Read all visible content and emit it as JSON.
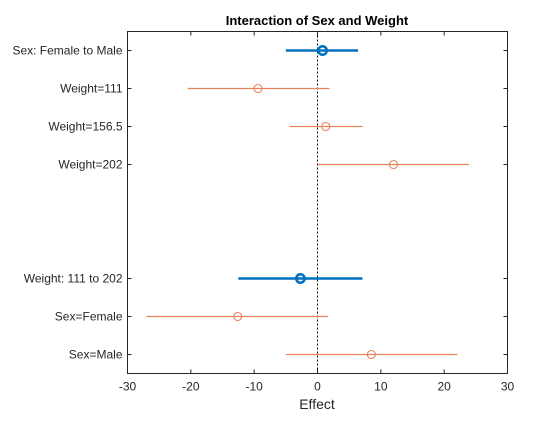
{
  "chart_data": {
    "type": "scatter",
    "title": "Interaction of Sex and Weight",
    "xlabel": "Effect",
    "ylabel": "",
    "xlim": [
      -30,
      30
    ],
    "xticks": [
      -30,
      -20,
      -10,
      0,
      10,
      20,
      30
    ],
    "grid": false,
    "reference_line_x": 0,
    "rows": [
      {
        "label": "Sex: Female to Male",
        "estimate": 0.8,
        "low": -5.0,
        "high": 6.4,
        "kind": "main"
      },
      {
        "label": "Weight=111",
        "estimate": -9.4,
        "low": -20.5,
        "high": 1.9,
        "kind": "conditional"
      },
      {
        "label": "Weight=156.5",
        "estimate": 1.3,
        "low": -4.4,
        "high": 7.1,
        "kind": "conditional"
      },
      {
        "label": "Weight=202",
        "estimate": 12.0,
        "low": 0.0,
        "high": 23.9,
        "kind": "conditional"
      },
      {
        "label": "",
        "estimate": null,
        "low": null,
        "high": null,
        "kind": "gap"
      },
      {
        "label": "",
        "estimate": null,
        "low": null,
        "high": null,
        "kind": "gap"
      },
      {
        "label": "Weight: 111 to 202",
        "estimate": -2.7,
        "low": -12.5,
        "high": 7.1,
        "kind": "main"
      },
      {
        "label": "Sex=Female",
        "estimate": -12.6,
        "low": -27.0,
        "high": 1.7,
        "kind": "conditional"
      },
      {
        "label": "Sex=Male",
        "estimate": 8.5,
        "low": -5.0,
        "high": 22.1,
        "kind": "conditional"
      }
    ],
    "colors": {
      "main": "#0072BD",
      "conditional": "#E8825A",
      "axis": "#262626",
      "reference": "#000000"
    }
  }
}
